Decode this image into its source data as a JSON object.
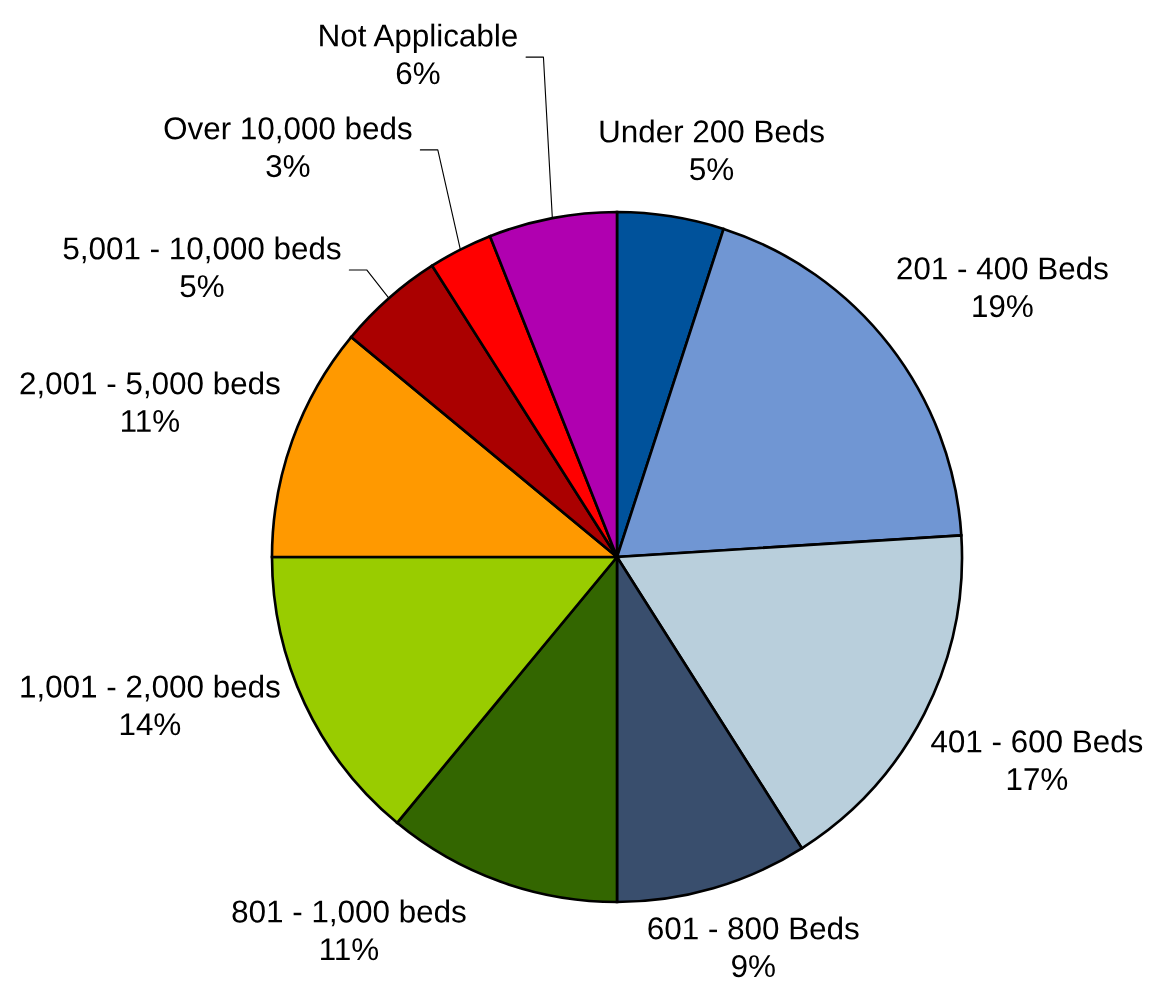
{
  "chart_data": {
    "type": "pie",
    "categories": [
      "Under 200 Beds",
      "201 - 400 Beds",
      "401 - 600 Beds",
      "601 - 800 Beds",
      "801 - 1,000 beds",
      "1,001 - 2,000 beds",
      "2,001 - 5,000 beds",
      "5,001 - 10,000 beds",
      "Over 10,000 beds",
      "Not Applicable"
    ],
    "values": [
      5,
      19,
      17,
      9,
      11,
      14,
      11,
      5,
      3,
      6
    ],
    "value_labels": [
      "5%",
      "19%",
      "17%",
      "9%",
      "11%",
      "14%",
      "11%",
      "5%",
      "3%",
      "6%"
    ],
    "colors": [
      "#00529B",
      "#7096D3",
      "#B9CFDC",
      "#394E6D",
      "#336600",
      "#99CC00",
      "#FF9900",
      "#AA0000",
      "#FF0000",
      "#B000B0"
    ]
  }
}
